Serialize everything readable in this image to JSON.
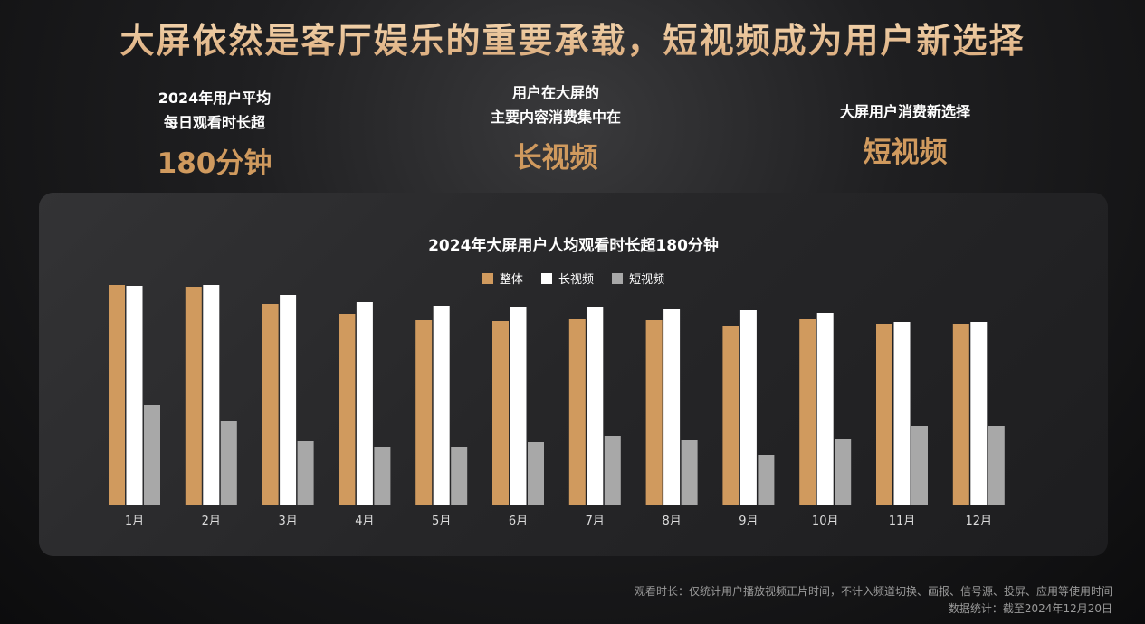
{
  "title": "大屏依然是客厅娱乐的重要承载，短视频成为用户新选择",
  "stats": [
    {
      "line1": "2024年用户平均",
      "line2": "每日观看时长超",
      "big": "180分钟"
    },
    {
      "line1": "用户在大屏的",
      "line2": "主要内容消费集中在",
      "big": "长视频"
    },
    {
      "line1": "大屏用户消费新选择",
      "line2": "",
      "big": "短视频"
    }
  ],
  "colors": {
    "overall": "#d09a5e",
    "long": "#ffffff",
    "short": "#a8a8a8"
  },
  "chart_data": {
    "type": "bar",
    "title": "2024年大屏用户人均观看时长超180分钟",
    "categories": [
      "1月",
      "2月",
      "3月",
      "4月",
      "5月",
      "6月",
      "7月",
      "8月",
      "9月",
      "10月",
      "11月",
      "12月"
    ],
    "series": [
      {
        "name": "整体",
        "values": [
          243,
          241,
          222,
          211,
          204,
          203,
          205,
          204,
          197,
          205,
          200,
          200
        ]
      },
      {
        "name": "长视频",
        "values": [
          242,
          243,
          232,
          224,
          220,
          218,
          219,
          216,
          215,
          212,
          202,
          202
        ]
      },
      {
        "name": "短视频",
        "values": [
          110,
          92,
          70,
          64,
          64,
          69,
          76,
          72,
          55,
          73,
          87,
          87
        ]
      }
    ],
    "ylim": [
      0,
      250
    ],
    "legend": "top-center",
    "grid": false
  },
  "footnote": {
    "line1": "观看时长：仅统计用户播放视频正片时间，不计入频道切换、画报、信号源、投屏、应用等使用时间",
    "line2": "数据统计：截至2024年12月20日"
  }
}
